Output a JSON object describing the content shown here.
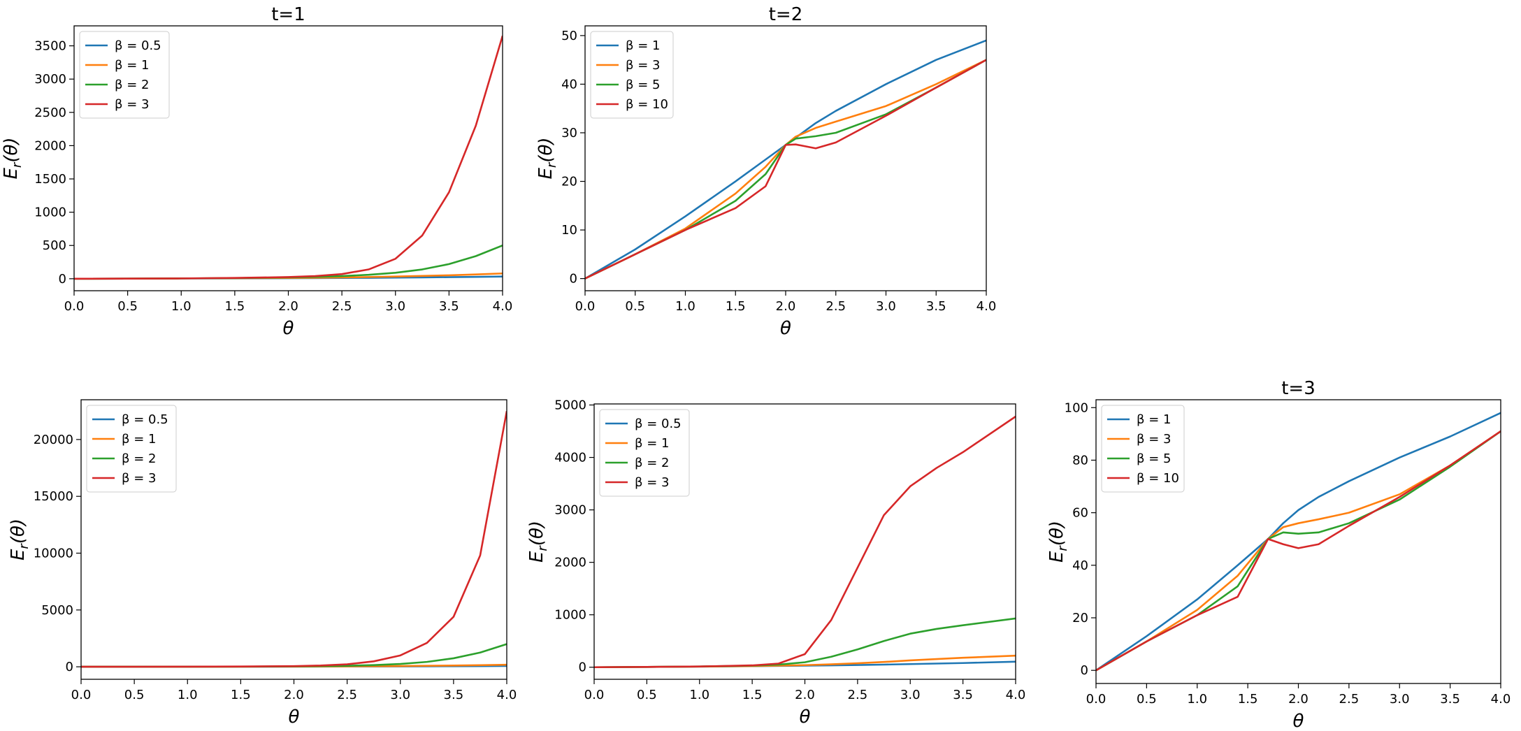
{
  "figure": {
    "width": 2176,
    "height": 1046
  },
  "chart_data": [
    {
      "type": "line",
      "title": "t=1",
      "xlabel": "θ",
      "ylabel": "E_r(θ)",
      "xlim": [
        0.0,
        4.0
      ],
      "ylim": [
        -180,
        3800
      ],
      "xticks": [
        "0.0",
        "0.5",
        "1.0",
        "1.5",
        "2.0",
        "2.5",
        "3.0",
        "3.5",
        "4.0"
      ],
      "yticks": [
        "0",
        "500",
        "1000",
        "1500",
        "2000",
        "2500",
        "3000",
        "3500"
      ],
      "ytick_values": [
        0,
        500,
        1000,
        1500,
        2000,
        2500,
        3000,
        3500
      ],
      "legend_position": "upper-left",
      "x": [
        0.0,
        0.5,
        1.0,
        1.5,
        2.0,
        2.25,
        2.5,
        2.75,
        3.0,
        3.25,
        3.5,
        3.75,
        4.0
      ],
      "series": [
        {
          "name": "β = 0.5",
          "color": "#1f77b4",
          "values": [
            0,
            2,
            4,
            6,
            8,
            10,
            12,
            14,
            17,
            20,
            24,
            28,
            33
          ]
        },
        {
          "name": "β = 1",
          "color": "#ff7f0e",
          "values": [
            0,
            2,
            5,
            8,
            12,
            15,
            20,
            26,
            33,
            42,
            52,
            65,
            80
          ]
        },
        {
          "name": "β = 2",
          "color": "#2ca02c",
          "values": [
            0,
            2,
            5,
            10,
            20,
            28,
            40,
            60,
            90,
            140,
            220,
            340,
            500
          ]
        },
        {
          "name": "β = 3",
          "color": "#d62728",
          "values": [
            0,
            2,
            5,
            12,
            25,
            40,
            70,
            140,
            300,
            650,
            1300,
            2300,
            3650
          ]
        }
      ]
    },
    {
      "type": "line",
      "title": "t=2",
      "xlabel": "θ",
      "ylabel": "E_r(θ)",
      "xlim": [
        0.0,
        4.0
      ],
      "ylim": [
        -2.5,
        52
      ],
      "xticks": [
        "0.0",
        "0.5",
        "1.0",
        "1.5",
        "2.0",
        "2.5",
        "3.0",
        "3.5",
        "4.0"
      ],
      "yticks": [
        "0",
        "10",
        "20",
        "30",
        "40",
        "50"
      ],
      "ytick_values": [
        0,
        10,
        20,
        30,
        40,
        50
      ],
      "legend_position": "upper-left",
      "x": [
        0.0,
        0.5,
        1.0,
        1.5,
        1.8,
        2.0,
        2.1,
        2.3,
        2.5,
        3.0,
        3.5,
        4.0
      ],
      "series": [
        {
          "name": "β = 1",
          "color": "#1f77b4",
          "values": [
            0,
            6,
            12.8,
            20,
            24.5,
            27.5,
            29,
            32,
            34.5,
            40,
            45,
            49
          ]
        },
        {
          "name": "β = 3",
          "color": "#ff7f0e",
          "values": [
            0,
            5,
            10.3,
            17.5,
            23,
            27.5,
            29.2,
            31,
            32.3,
            35.5,
            40,
            45
          ]
        },
        {
          "name": "β = 5",
          "color": "#2ca02c",
          "values": [
            0,
            5,
            10,
            16,
            21.5,
            27.5,
            28.8,
            29.3,
            30,
            33.8,
            39.3,
            45
          ]
        },
        {
          "name": "β = 10",
          "color": "#d62728",
          "values": [
            0,
            5,
            10,
            14.5,
            19,
            27.5,
            27.6,
            26.8,
            28,
            33.5,
            39.3,
            45
          ]
        }
      ]
    },
    {
      "type": "line",
      "title": "",
      "xlabel": "θ",
      "ylabel": "E_r(θ)",
      "xlim": [
        0.0,
        4.0
      ],
      "ylim": [
        -1100,
        23500
      ],
      "xticks": [
        "0.0",
        "0.5",
        "1.0",
        "1.5",
        "2.0",
        "2.5",
        "3.0",
        "3.5",
        "4.0"
      ],
      "yticks": [
        "0",
        "5000",
        "10000",
        "15000",
        "20000"
      ],
      "ytick_values": [
        0,
        5000,
        10000,
        15000,
        20000
      ],
      "legend_position": "upper-left",
      "x": [
        0.0,
        0.5,
        1.0,
        1.5,
        2.0,
        2.25,
        2.5,
        2.75,
        3.0,
        3.25,
        3.5,
        3.75,
        4.0
      ],
      "series": [
        {
          "name": "β = 0.5",
          "color": "#1f77b4",
          "values": [
            0,
            3,
            6,
            10,
            15,
            18,
            22,
            27,
            33,
            40,
            48,
            57,
            68
          ]
        },
        {
          "name": "β = 1",
          "color": "#ff7f0e",
          "values": [
            0,
            3,
            6,
            12,
            20,
            27,
            35,
            48,
            65,
            85,
            110,
            140,
            180
          ]
        },
        {
          "name": "β = 2",
          "color": "#2ca02c",
          "values": [
            0,
            3,
            8,
            15,
            35,
            55,
            90,
            150,
            250,
            430,
            750,
            1250,
            2000
          ]
        },
        {
          "name": "β = 3",
          "color": "#d62728",
          "values": [
            0,
            3,
            10,
            25,
            60,
            110,
            220,
            480,
            1000,
            2100,
            4400,
            9800,
            22500
          ]
        }
      ]
    },
    {
      "type": "line",
      "title": "",
      "xlabel": "θ",
      "ylabel": "E_r(θ)",
      "xlim": [
        0.0,
        4.0
      ],
      "ylim": [
        -230,
        5020
      ],
      "xticks": [
        "0.0",
        "0.5",
        "1.0",
        "1.5",
        "2.0",
        "2.5",
        "3.0",
        "3.5",
        "4.0"
      ],
      "yticks": [
        "0",
        "1000",
        "2000",
        "3000",
        "4000",
        "5000"
      ],
      "ytick_values": [
        0,
        1000,
        2000,
        3000,
        4000,
        5000
      ],
      "legend_position": "upper-left",
      "x": [
        0.0,
        0.5,
        1.0,
        1.5,
        1.75,
        2.0,
        2.25,
        2.5,
        2.75,
        3.0,
        3.25,
        3.5,
        4.0
      ],
      "series": [
        {
          "name": "β = 0.5",
          "color": "#1f77b4",
          "values": [
            0,
            6,
            12,
            20,
            25,
            30,
            35,
            42,
            50,
            60,
            70,
            80,
            105
          ]
        },
        {
          "name": "β = 1",
          "color": "#ff7f0e",
          "values": [
            0,
            6,
            12,
            22,
            30,
            40,
            55,
            75,
            100,
            130,
            155,
            180,
            220
          ]
        },
        {
          "name": "β = 2",
          "color": "#2ca02c",
          "values": [
            0,
            6,
            14,
            30,
            50,
            95,
            200,
            340,
            500,
            640,
            730,
            800,
            930
          ]
        },
        {
          "name": "β = 3",
          "color": "#d62728",
          "values": [
            0,
            6,
            14,
            35,
            70,
            250,
            900,
            1900,
            2900,
            3450,
            3800,
            4100,
            4780
          ]
        }
      ]
    },
    {
      "type": "line",
      "title": "t=3",
      "xlabel": "θ",
      "ylabel": "E_r(θ)",
      "xlim": [
        0.0,
        4.0
      ],
      "ylim": [
        -5,
        103
      ],
      "xticks": [
        "0.0",
        "0.5",
        "1.0",
        "1.5",
        "2.0",
        "2.5",
        "3.0",
        "3.5",
        "4.0"
      ],
      "yticks": [
        "0",
        "20",
        "40",
        "60",
        "80",
        "100"
      ],
      "ytick_values": [
        0,
        20,
        40,
        60,
        80,
        100
      ],
      "legend_position": "upper-left",
      "x": [
        0.0,
        0.5,
        1.0,
        1.4,
        1.7,
        1.85,
        2.0,
        2.2,
        2.5,
        3.0,
        3.5,
        4.0
      ],
      "series": [
        {
          "name": "β = 1",
          "color": "#1f77b4",
          "values": [
            0,
            13,
            27,
            40,
            50,
            56,
            61,
            66,
            72,
            81,
            89,
            98
          ]
        },
        {
          "name": "β = 3",
          "color": "#ff7f0e",
          "values": [
            0,
            11,
            23,
            36,
            50,
            54.5,
            56,
            57.5,
            60,
            67,
            78,
            91
          ]
        },
        {
          "name": "β = 5",
          "color": "#2ca02c",
          "values": [
            0,
            11,
            21,
            32,
            50,
            52.5,
            52,
            52.5,
            56,
            65,
            77.5,
            91
          ]
        },
        {
          "name": "β = 10",
          "color": "#d62728",
          "values": [
            0,
            11,
            21,
            28,
            50,
            48,
            46.5,
            48,
            55,
            66,
            78,
            91
          ]
        }
      ]
    }
  ]
}
